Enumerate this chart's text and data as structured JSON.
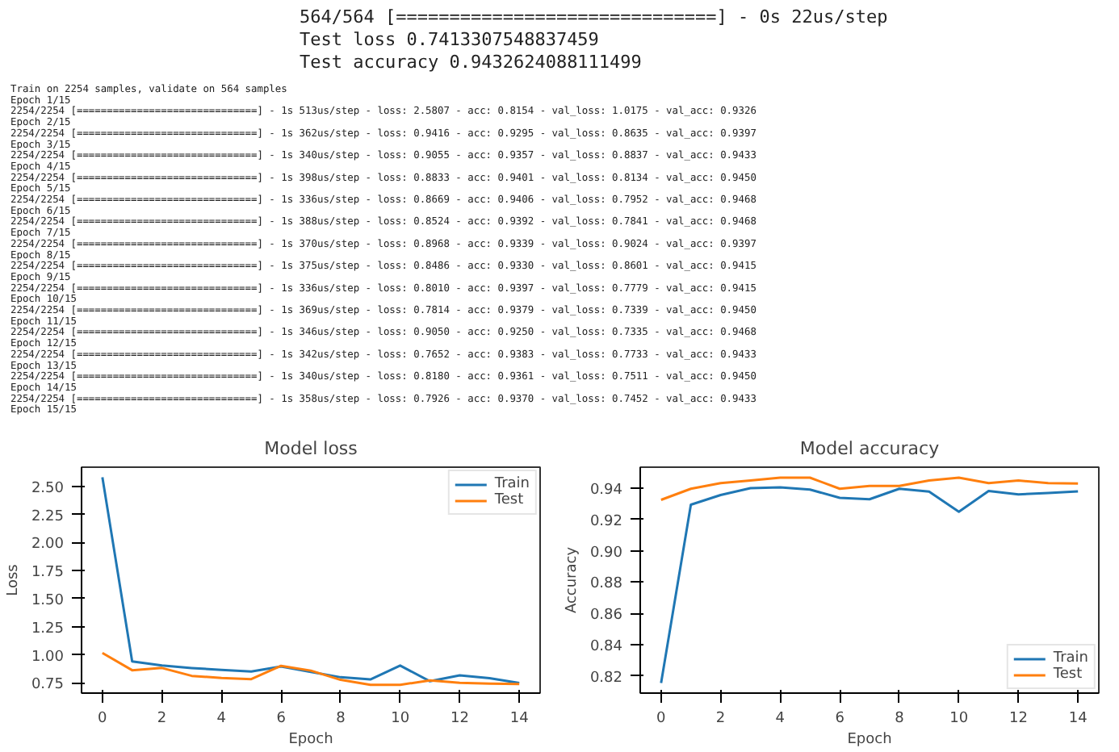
{
  "chart_data": [
    {
      "type": "other",
      "annotations": [
        "564/564 [==============================] - 0s 22us/step",
        "Test loss 0.7413307548837459",
        "Test accuracy 0.9432624088111499"
      ]
    },
    {
      "type": "other",
      "annotations": [
        "Train on 2254 samples, validate on 564 samples",
        "Epoch 1/15",
        "2254/2254 [==============================] - 1s 513us/step - loss: 2.5807 - acc: 0.8154 - val_loss: 1.0175 - val_acc: 0.9326",
        "Epoch 2/15",
        "2254/2254 [==============================] - 1s 362us/step - loss: 0.9416 - acc: 0.9295 - val_loss: 0.8635 - val_acc: 0.9397",
        "Epoch 3/15",
        "2254/2254 [==============================] - 1s 340us/step - loss: 0.9055 - acc: 0.9357 - val_loss: 0.8837 - val_acc: 0.9433",
        "Epoch 4/15",
        "2254/2254 [==============================] - 1s 398us/step - loss: 0.8833 - acc: 0.9401 - val_loss: 0.8134 - val_acc: 0.9450",
        "Epoch 5/15",
        "2254/2254 [==============================] - 1s 336us/step - loss: 0.8669 - acc: 0.9406 - val_loss: 0.7952 - val_acc: 0.9468",
        "Epoch 6/15",
        "2254/2254 [==============================] - 1s 388us/step - loss: 0.8524 - acc: 0.9392 - val_loss: 0.7841 - val_acc: 0.9468",
        "Epoch 7/15",
        "2254/2254 [==============================] - 1s 370us/step - loss: 0.8968 - acc: 0.9339 - val_loss: 0.9024 - val_acc: 0.9397",
        "Epoch 8/15",
        "2254/2254 [==============================] - 1s 375us/step - loss: 0.8486 - acc: 0.9330 - val_loss: 0.8601 - val_acc: 0.9415",
        "Epoch 9/15",
        "2254/2254 [==============================] - 1s 336us/step - loss: 0.8010 - acc: 0.9397 - val_loss: 0.7779 - val_acc: 0.9415",
        "Epoch 10/15",
        "2254/2254 [==============================] - 1s 369us/step - loss: 0.7814 - acc: 0.9379 - val_loss: 0.7339 - val_acc: 0.9450",
        "Epoch 11/15",
        "2254/2254 [==============================] - 1s 346us/step - loss: 0.9050 - acc: 0.9250 - val_loss: 0.7335 - val_acc: 0.9468",
        "Epoch 12/15",
        "2254/2254 [==============================] - 1s 342us/step - loss: 0.7652 - acc: 0.9383 - val_loss: 0.7733 - val_acc: 0.9433",
        "Epoch 13/15",
        "2254/2254 [==============================] - 1s 340us/step - loss: 0.8180 - acc: 0.9361 - val_loss: 0.7511 - val_acc: 0.9450",
        "Epoch 14/15",
        "2254/2254 [==============================] - 1s 358us/step - loss: 0.7926 - acc: 0.9370 - val_loss: 0.7452 - val_acc: 0.9433",
        "Epoch 15/15"
      ]
    },
    {
      "type": "line",
      "title": "Model loss",
      "xlabel": "Epoch",
      "ylabel": "Loss",
      "x": [
        0,
        1,
        2,
        3,
        4,
        5,
        6,
        7,
        8,
        9,
        10,
        11,
        12,
        13,
        14
      ],
      "xlim": [
        -0.7,
        14.7
      ],
      "ylim": [
        0.66,
        2.67
      ],
      "xticks": [
        0,
        2,
        4,
        6,
        8,
        10,
        12,
        14
      ],
      "yticks": [
        0.75,
        {
          "value": 1,
          "label": "1.00"
        },
        1.25,
        {
          "value": 1.5,
          "label": "1.50"
        },
        1.75,
        {
          "value": 2,
          "label": "2.00"
        },
        2.25,
        {
          "value": 2.5,
          "label": "2.50"
        }
      ],
      "grid": false,
      "legend": "top right",
      "series": [
        {
          "name": "Train",
          "color": "#1f77b4",
          "values": [
            2.5807,
            0.9416,
            0.9055,
            0.8833,
            0.8669,
            0.8524,
            0.8968,
            0.8486,
            0.801,
            0.7814,
            0.905,
            0.7652,
            0.818,
            0.7926,
            0.75
          ]
        },
        {
          "name": "Test",
          "color": "#ff7f0e",
          "values": [
            1.0175,
            0.8635,
            0.8837,
            0.8134,
            0.7952,
            0.7841,
            0.9024,
            0.8601,
            0.7779,
            0.7339,
            0.7335,
            0.7733,
            0.7511,
            0.7452,
            0.74
          ]
        }
      ]
    },
    {
      "type": "line",
      "title": "Model accuracy",
      "xlabel": "Epoch",
      "ylabel": "Accuracy",
      "x": [
        0,
        1,
        2,
        3,
        4,
        5,
        6,
        7,
        8,
        9,
        10,
        11,
        12,
        13,
        14
      ],
      "xlim": [
        -0.7,
        14.7
      ],
      "ylim": [
        0.809,
        0.9535
      ],
      "xticks": [
        0,
        2,
        4,
        6,
        8,
        10,
        12,
        14
      ],
      "yticks": [
        0.82,
        0.84,
        0.86,
        0.88,
        {
          "value": 0.9,
          "label": "0.90"
        },
        0.92,
        0.94
      ],
      "grid": false,
      "legend": "bottom right",
      "series": [
        {
          "name": "Train",
          "color": "#1f77b4",
          "values": [
            0.8154,
            0.9295,
            0.9357,
            0.9401,
            0.9406,
            0.9392,
            0.9339,
            0.933,
            0.9397,
            0.9379,
            0.925,
            0.9383,
            0.9361,
            0.937,
            0.938
          ]
        },
        {
          "name": "Test",
          "color": "#ff7f0e",
          "values": [
            0.9326,
            0.9397,
            0.9433,
            0.945,
            0.9468,
            0.9468,
            0.9397,
            0.9415,
            0.9415,
            0.945,
            0.9468,
            0.9433,
            0.945,
            0.9433,
            0.943
          ]
        }
      ]
    }
  ]
}
